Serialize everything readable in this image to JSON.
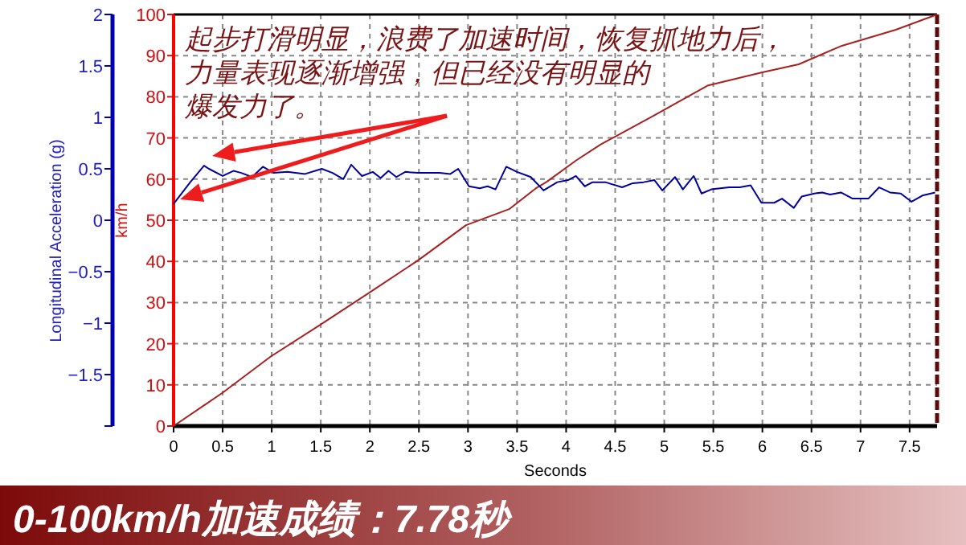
{
  "chart_data": {
    "type": "line",
    "title": "0-100km/h加速成绩：7.78秒",
    "xlabel": "Seconds",
    "ylabel": "km/h",
    "y2label": "Longitudinal Acceleration (g)",
    "annotations": [
      "起步打滑明显，浪费了加速时间，恢复抓地力后，",
      "力量表现逐渐增强，但已经没有明显的",
      "爆发力了。"
    ],
    "xlim": [
      0,
      7.78
    ],
    "xticks": [
      0,
      0.5,
      1,
      1.5,
      2,
      2.5,
      3,
      3.5,
      4,
      4.5,
      5,
      5.5,
      6,
      6.5,
      7,
      7.5
    ],
    "ylim": [
      0,
      100
    ],
    "yticks": [
      0,
      10,
      20,
      30,
      40,
      50,
      60,
      70,
      80,
      90,
      100
    ],
    "y2lim": [
      -2,
      2
    ],
    "y2ticks": [
      {
        "value": -2,
        "label": null
      },
      -1.5,
      -1,
      -0.5,
      0,
      0.5,
      1,
      1.5,
      2
    ],
    "grid": true,
    "line_style": "solid",
    "marker": "none",
    "series": [
      {
        "color": "#a82020",
        "x": [
          0,
          0.5,
          0.99,
          1.5,
          2.0,
          2.5,
          2.98,
          3.42,
          3.7,
          3.8,
          4.1,
          4.35,
          4.9,
          5.44,
          5.99,
          6.37,
          6.81,
          7.36,
          7.78
        ],
        "values": [
          0,
          8.1,
          16.9,
          24.7,
          32.5,
          40.4,
          48.8,
          52.7,
          57.9,
          59.3,
          64.5,
          68.4,
          75.5,
          82.7,
          85.9,
          87.9,
          92.4,
          96.3,
          100
        ]
      },
      {
        "color": "#0000a0",
        "axis": "y2",
        "x": [
          0,
          0.17,
          0.31,
          0.36,
          0.5,
          0.61,
          0.69,
          0.8,
          0.91,
          1.02,
          1.16,
          1.34,
          1.51,
          1.62,
          1.73,
          1.81,
          1.92,
          2.03,
          2.11,
          2.19,
          2.27,
          2.36,
          2.49,
          2.71,
          2.82,
          2.9,
          3.01,
          3.12,
          3.2,
          3.28,
          3.39,
          3.5,
          3.64,
          3.77,
          3.91,
          4.02,
          4.1,
          4.19,
          4.27,
          4.4,
          4.57,
          4.68,
          4.79,
          4.9,
          4.98,
          5.11,
          5.19,
          5.3,
          5.38,
          5.48,
          5.66,
          5.77,
          5.88,
          5.99,
          6.12,
          6.2,
          6.32,
          6.4,
          6.53,
          6.61,
          6.69,
          6.8,
          6.92,
          7.08,
          7.19,
          7.3,
          7.41,
          7.52,
          7.63,
          7.76
        ],
        "values": [
          0.16,
          0.37,
          0.53,
          0.5,
          0.43,
          0.48,
          0.46,
          0.42,
          0.52,
          0.46,
          0.47,
          0.45,
          0.5,
          0.46,
          0.4,
          0.54,
          0.43,
          0.47,
          0.41,
          0.48,
          0.42,
          0.47,
          0.46,
          0.46,
          0.45,
          0.5,
          0.33,
          0.31,
          0.33,
          0.3,
          0.52,
          0.47,
          0.42,
          0.29,
          0.37,
          0.39,
          0.43,
          0.33,
          0.37,
          0.37,
          0.32,
          0.36,
          0.37,
          0.39,
          0.29,
          0.42,
          0.3,
          0.43,
          0.26,
          0.3,
          0.32,
          0.32,
          0.34,
          0.17,
          0.17,
          0.21,
          0.12,
          0.23,
          0.26,
          0.27,
          0.25,
          0.27,
          0.21,
          0.21,
          0.32,
          0.27,
          0.26,
          0.18,
          0.24,
          0.27
        ]
      }
    ]
  }
}
